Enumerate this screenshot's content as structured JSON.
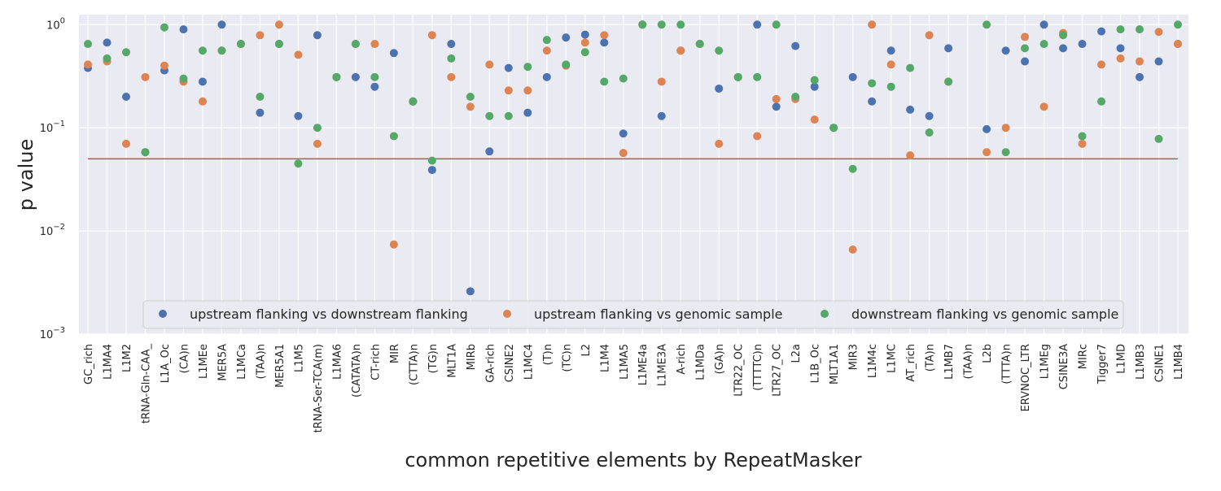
{
  "chart_data": {
    "type": "scatter",
    "xlabel": "common repetitive elements by RepeatMasker",
    "ylabel": "p value",
    "yscale": "log",
    "ylim": [
      0.001,
      1.25
    ],
    "y_ticks": [
      {
        "value": 0.001,
        "base": "10",
        "exp": "−3"
      },
      {
        "value": 0.01,
        "base": "10",
        "exp": "−2"
      },
      {
        "value": 0.1,
        "base": "10",
        "exp": "−1"
      },
      {
        "value": 1,
        "base": "10",
        "exp": "0"
      }
    ],
    "grid": true,
    "legend_position": "bottom-center",
    "threshold": {
      "value": 0.05,
      "color": "#c44e52"
    },
    "categories": [
      "GC_rich",
      "L1MA4",
      "L1M2",
      "tRNA-Gln-CAA_",
      "L1A_Oc",
      "(CA)n",
      "L1MEe",
      "MER5A",
      "L1MCa",
      "(TAA)n",
      "MER5A1",
      "L1M5",
      "tRNA-Ser-TCA(m)",
      "L1MA6",
      "(CATATA)n",
      "CT-rich",
      "MIR",
      "(CTTA)n",
      "(TG)n",
      "MLT1A",
      "MIRb",
      "GA-rich",
      "CSINE2",
      "L1MC4",
      "(T)n",
      "(TC)n",
      "L2",
      "L1M4",
      "L1MA5",
      "L1ME4a",
      "L1ME3A",
      "A-rich",
      "L1MDa",
      "(GA)n",
      "LTR22_OC",
      "(TTTTC)n",
      "LTR27_OC",
      "L2a",
      "L1B_Oc",
      "MLT1A1",
      "MIR3",
      "L1M4c",
      "L1MC",
      "AT_rich",
      "(TA)n",
      "L1MB7",
      "(TAA)n",
      "L2b",
      "(TTTA)n",
      "ERVNOC_LTR",
      "L1MEg",
      "CSINE3A",
      "MIRc",
      "Tigger7",
      "L1MD",
      "L1MB3",
      "CSINE1",
      "L1MB4"
    ],
    "series": [
      {
        "name": "upstream flanking vs downstream flanking",
        "color": "#4c72b0",
        "values": [
          0.38,
          0.67,
          0.2,
          0.058,
          0.36,
          0.9,
          0.28,
          1.0,
          0.65,
          0.14,
          0.65,
          0.13,
          0.79,
          0.31,
          0.31,
          0.25,
          0.53,
          0.18,
          0.039,
          0.65,
          0.0026,
          0.059,
          0.38,
          0.14,
          0.31,
          0.75,
          0.8,
          0.67,
          0.088,
          1.0,
          0.13,
          0.56,
          0.65,
          0.24,
          0.31,
          1.0,
          0.16,
          0.62,
          0.25,
          0.1,
          0.31,
          0.18,
          0.56,
          0.15,
          0.13,
          0.59,
          null,
          0.097,
          0.56,
          0.44,
          1.0,
          0.59,
          0.65,
          0.86,
          0.59,
          0.31,
          0.44,
          0.65
        ]
      },
      {
        "name": "upstream flanking vs genomic sample",
        "color": "#dd8452",
        "values": [
          0.41,
          0.44,
          0.07,
          0.31,
          0.4,
          0.28,
          0.18,
          0.56,
          0.65,
          0.79,
          1.0,
          0.51,
          0.07,
          0.31,
          0.65,
          0.65,
          0.0074,
          0.18,
          0.79,
          0.31,
          0.16,
          0.41,
          0.23,
          0.23,
          0.56,
          0.4,
          0.67,
          0.79,
          0.057,
          1.0,
          0.28,
          0.56,
          0.65,
          0.07,
          0.31,
          0.083,
          0.19,
          0.19,
          0.12,
          0.1,
          0.0066,
          1.0,
          0.41,
          0.054,
          0.79,
          0.28,
          null,
          0.058,
          0.1,
          0.76,
          0.16,
          0.83,
          0.07,
          0.41,
          0.47,
          0.44,
          0.85,
          0.65
        ]
      },
      {
        "name": "downstream flanking vs genomic sample",
        "color": "#55a868",
        "values": [
          0.65,
          0.47,
          0.54,
          0.058,
          0.94,
          0.3,
          0.56,
          0.56,
          0.65,
          0.2,
          0.65,
          0.045,
          0.1,
          0.31,
          0.65,
          0.31,
          0.083,
          0.18,
          0.048,
          0.47,
          0.2,
          0.13,
          0.13,
          0.39,
          0.71,
          0.41,
          0.54,
          0.28,
          0.3,
          1.0,
          1.0,
          1.0,
          0.65,
          0.56,
          0.31,
          0.31,
          1.0,
          0.2,
          0.29,
          0.1,
          0.04,
          0.27,
          0.25,
          0.38,
          0.09,
          0.28,
          null,
          1.0,
          0.058,
          0.59,
          0.65,
          0.79,
          0.083,
          0.18,
          0.9,
          0.9,
          0.078,
          1.0
        ]
      }
    ]
  }
}
